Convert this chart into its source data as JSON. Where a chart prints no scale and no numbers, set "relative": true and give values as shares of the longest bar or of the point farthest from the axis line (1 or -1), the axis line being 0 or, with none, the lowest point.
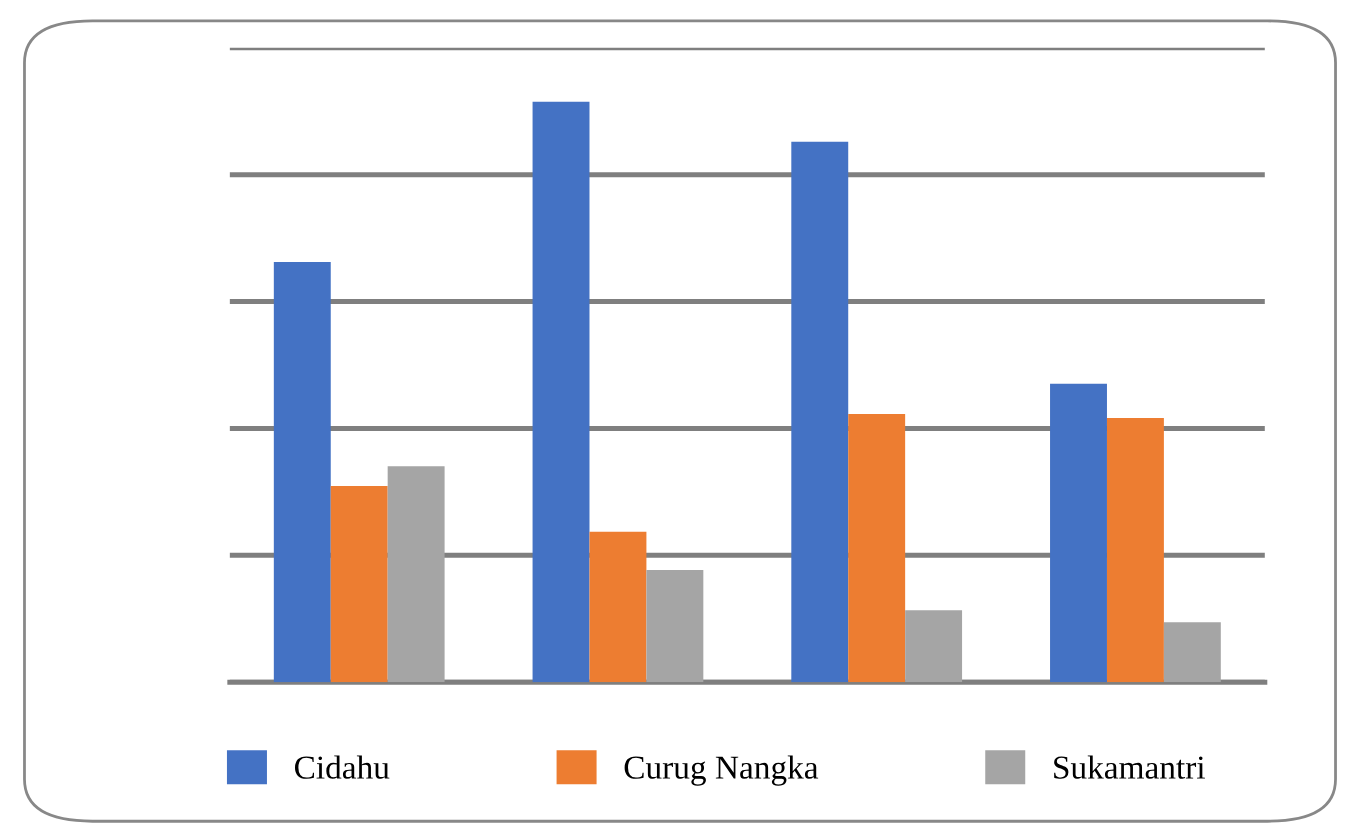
{
  "chart_data": {
    "type": "bar",
    "relative": true,
    "categories": [
      null,
      null,
      null,
      null
    ],
    "series": [
      {
        "name": "Cidahu",
        "color": "#4472c4",
        "values": [
          0.724,
          1,
          0.931,
          0.514
        ]
      },
      {
        "name": "Curug Nangka",
        "color": "#ed7d31",
        "values": [
          0.338,
          0.259,
          0.462,
          0.455
        ]
      },
      {
        "name": "Sukamantri",
        "color": "#a5a5a5",
        "values": [
          0.372,
          0.193,
          0.124,
          0.103
        ]
      }
    ],
    "grid": "y",
    "legend": "bottom"
  }
}
